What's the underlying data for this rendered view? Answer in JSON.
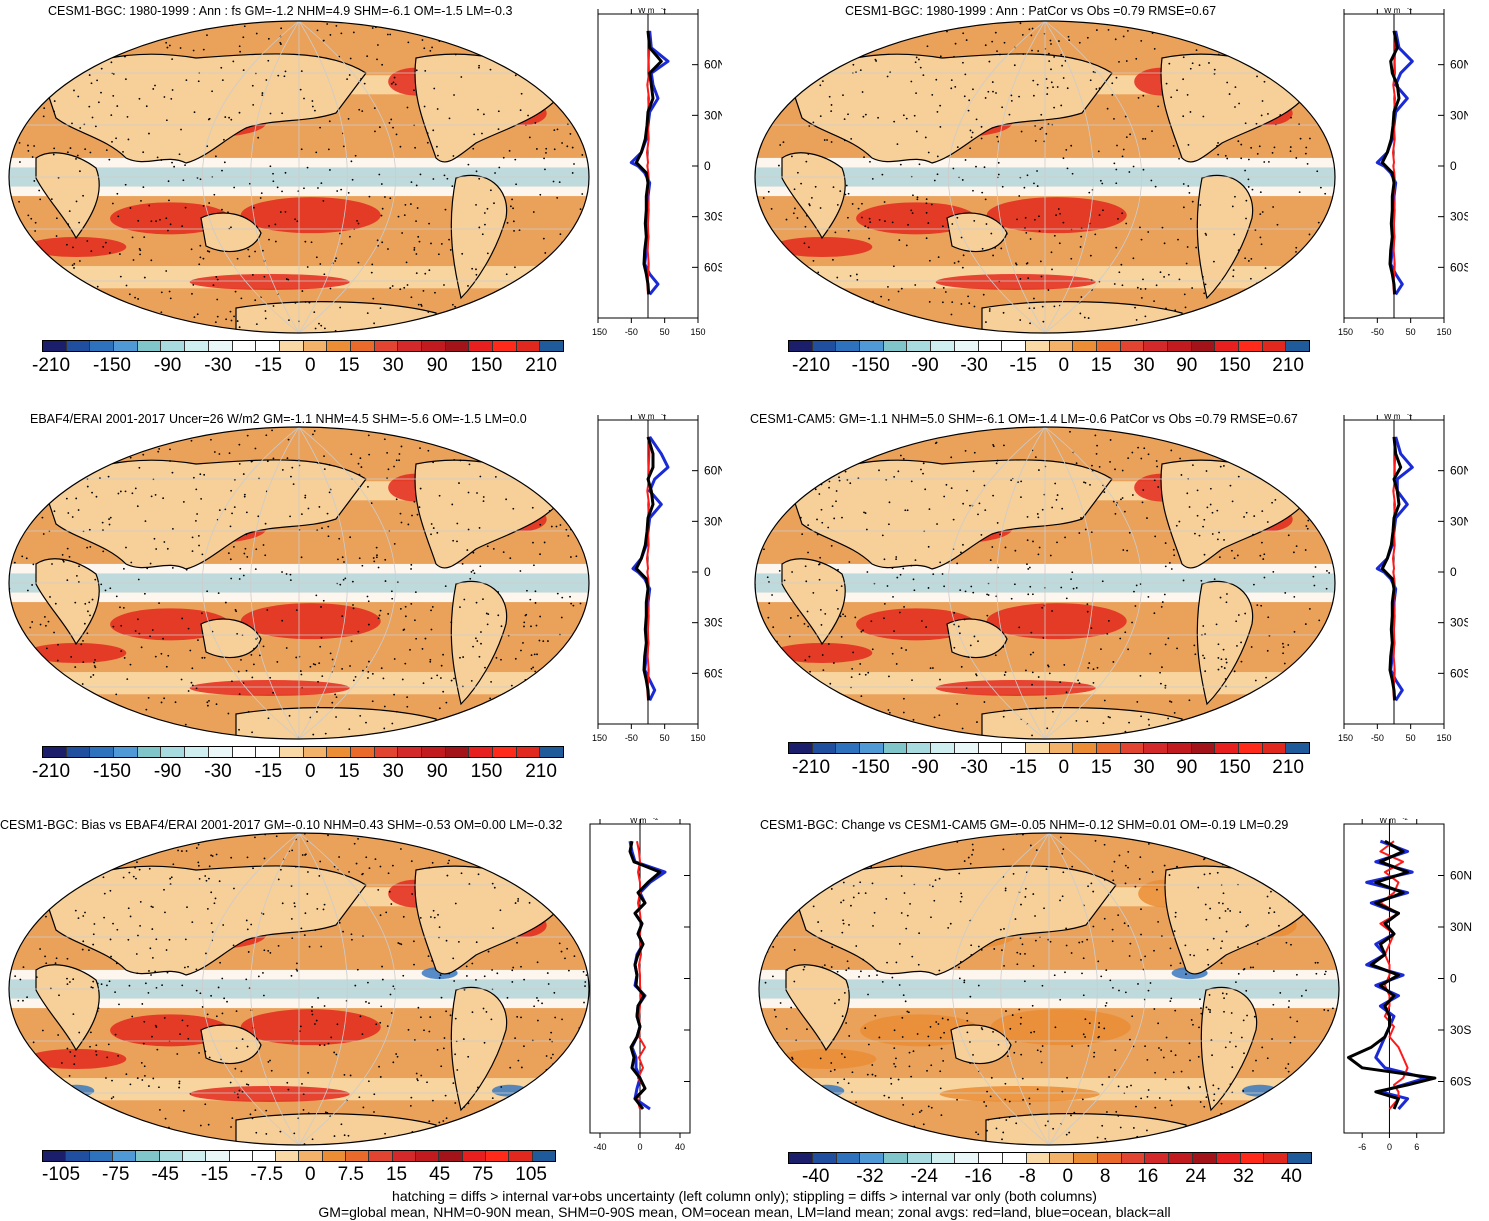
{
  "colors": {
    "land_fill": "#f7cf98",
    "ocean_fill": "#eaa15a",
    "warm": "#e3291d",
    "deep_warm": "#c81e17",
    "cool": "#b9e0ea",
    "blue_line": "#1a2ad6",
    "red_line": "#ff1a1a",
    "black_line": "#000000"
  },
  "colorbar_a": {
    "colors": [
      "#1b1e6b",
      "#1f4f9e",
      "#2e72be",
      "#4f9ad6",
      "#7fc5c9",
      "#a8dbe0",
      "#cfeef0",
      "#e9f7f8",
      "#ffffff",
      "#ffffff",
      "#f9d9a5",
      "#f2b26a",
      "#ea8d35",
      "#e96a2b",
      "#e24432",
      "#d3292a",
      "#c11b1f",
      "#a3131a",
      "#e71f1f",
      "#ff2a1a",
      "#e0281e",
      "#1f5a9a"
    ],
    "labels": [
      "-210",
      "-150",
      "-90",
      "-30",
      "-15",
      "0",
      "15",
      "30",
      "90",
      "150",
      "210"
    ]
  },
  "colorbar_bias": {
    "colors": [
      "#1b1e6b",
      "#1f4f9e",
      "#2e72be",
      "#4f9ad6",
      "#7fc5c9",
      "#a8dbe0",
      "#cfeef0",
      "#e9f7f8",
      "#ffffff",
      "#ffffff",
      "#f9d9a5",
      "#f2b26a",
      "#ea8d35",
      "#e96a2b",
      "#e24432",
      "#d3292a",
      "#c11b1f",
      "#a3131a",
      "#e71f1f",
      "#ff2a1a",
      "#e0281e",
      "#1f5a9a"
    ],
    "labels": [
      "-105",
      "-75",
      "-45",
      "-15",
      "-7.5",
      "0",
      "7.5",
      "15",
      "45",
      "75",
      "105"
    ]
  },
  "colorbar_change": {
    "colors": [
      "#1b1e6b",
      "#1f4f9e",
      "#2e72be",
      "#4f9ad6",
      "#7fc5c9",
      "#a8dbe0",
      "#cfeef0",
      "#e9f7f8",
      "#ffffff",
      "#ffffff",
      "#f9d9a5",
      "#f2b26a",
      "#ea8d35",
      "#e96a2b",
      "#e24432",
      "#d3292a",
      "#c11b1f",
      "#a3131a",
      "#e71f1f",
      "#ff2a1a",
      "#e0281e",
      "#1f5a9a"
    ],
    "labels": [
      "-40",
      "-32",
      "-24",
      "-16",
      "-8",
      "0",
      "8",
      "16",
      "24",
      "32",
      "40"
    ]
  },
  "lat_ticks": [
    "60N",
    "30N",
    "0",
    "30S",
    "60S"
  ],
  "zonal_unit": "W m",
  "zonal_unit_exp": "-2",
  "chart_data": [
    {
      "type": "heatmap",
      "title": "CESM1-BGC: 1980-1999 : Ann : fs GM=-1.2 NHM=4.9 SHM=-6.1 OM=-1.5 LM=-0.3",
      "colorbar": "colorbar_a",
      "zonal_xticks": [
        "-150",
        "-50",
        "50",
        "150"
      ],
      "zonal_xlim": [
        -150,
        150
      ],
      "zonal_lat": [
        80,
        70,
        62,
        55,
        48,
        40,
        32,
        24,
        16,
        8,
        2,
        0,
        -4,
        -10,
        -18,
        -26,
        -34,
        -42,
        -50,
        -58,
        -64,
        -70,
        -76
      ],
      "zonal_series": [
        {
          "key": "ocean",
          "values": [
            5,
            10,
            60,
            10,
            15,
            30,
            5,
            0,
            -5,
            -20,
            -50,
            -30,
            -10,
            5,
            0,
            0,
            -5,
            0,
            -5,
            -10,
            5,
            30,
            5
          ]
        },
        {
          "key": "land",
          "values": [
            3,
            4,
            2,
            3,
            -2,
            3,
            0,
            0,
            2,
            -3,
            0,
            -2,
            1,
            3,
            -2,
            2,
            0,
            1,
            -1,
            2,
            1,
            -2,
            0
          ]
        },
        {
          "key": "all",
          "values": [
            0,
            5,
            40,
            5,
            10,
            15,
            0,
            -3,
            -8,
            -20,
            -35,
            -25,
            -5,
            0,
            -5,
            -5,
            -8,
            -5,
            -10,
            -12,
            -5,
            0,
            2
          ]
        }
      ]
    },
    {
      "type": "heatmap",
      "title": "CESM1-BGC: 1980-1999 : Ann : PatCor vs Obs =0.79 RMSE=0.67",
      "colorbar": "colorbar_a",
      "zonal_xticks": [
        "-150",
        "-50",
        "50",
        "150"
      ],
      "zonal_xlim": [
        -150,
        150
      ],
      "zonal_lat": [
        80,
        70,
        62,
        55,
        48,
        40,
        32,
        24,
        16,
        8,
        2,
        0,
        -4,
        -10,
        -18,
        -26,
        -34,
        -42,
        -50,
        -58,
        -64,
        -70,
        -76
      ],
      "zonal_series": [
        {
          "key": "ocean",
          "values": [
            5,
            15,
            55,
            20,
            5,
            40,
            5,
            0,
            -5,
            -20,
            -50,
            -30,
            -10,
            5,
            0,
            0,
            -5,
            0,
            -5,
            -10,
            5,
            25,
            5
          ]
        },
        {
          "key": "land",
          "values": [
            3,
            4,
            2,
            3,
            -2,
            3,
            0,
            0,
            2,
            -3,
            0,
            -2,
            1,
            3,
            -2,
            2,
            0,
            1,
            -1,
            2,
            1,
            -2,
            0
          ]
        },
        {
          "key": "all",
          "values": [
            0,
            10,
            -10,
            -5,
            10,
            15,
            0,
            -3,
            -8,
            -20,
            -35,
            -25,
            -5,
            0,
            -5,
            -5,
            -8,
            -5,
            -10,
            -12,
            -5,
            0,
            2
          ]
        }
      ]
    },
    {
      "type": "heatmap",
      "title": "EBAF4/ERAI 2001-2017 Uncer=26 W/m2 GM=-1.1 NHM=4.5 SHM=-5.6 OM=-1.5 LM=0.0",
      "colorbar": "colorbar_a",
      "zonal_xticks": [
        "-150",
        "-50",
        "50",
        "150"
      ],
      "zonal_xlim": [
        -150,
        150
      ],
      "zonal_lat": [
        80,
        70,
        62,
        55,
        48,
        40,
        32,
        24,
        16,
        8,
        2,
        0,
        -4,
        -10,
        -18,
        -26,
        -34,
        -42,
        -50,
        -58,
        -64,
        -70,
        -76
      ],
      "zonal_series": [
        {
          "key": "ocean",
          "values": [
            5,
            40,
            60,
            20,
            5,
            40,
            5,
            0,
            -5,
            -20,
            -45,
            -30,
            -10,
            5,
            0,
            0,
            -5,
            0,
            -5,
            -10,
            5,
            20,
            5
          ]
        },
        {
          "key": "land",
          "values": [
            3,
            4,
            2,
            3,
            -2,
            3,
            0,
            0,
            2,
            -3,
            0,
            -2,
            1,
            3,
            -2,
            2,
            0,
            1,
            -1,
            2,
            1,
            -2,
            0
          ]
        },
        {
          "key": "all",
          "values": [
            0,
            15,
            15,
            0,
            10,
            15,
            0,
            -3,
            -8,
            -20,
            -35,
            -25,
            -5,
            0,
            -5,
            -5,
            -8,
            -5,
            -10,
            -12,
            -5,
            0,
            2
          ]
        }
      ]
    },
    {
      "type": "heatmap",
      "title": "CESM1-CAM5: GM=-1.1 NHM=5.0 SHM=-6.1 OM=-1.4 LM=-0.6 PatCor vs Obs =0.79 RMSE=0.67",
      "colorbar": "colorbar_a",
      "zonal_xticks": [
        "-150",
        "-50",
        "50",
        "150"
      ],
      "zonal_xlim": [
        -150,
        150
      ],
      "zonal_lat": [
        80,
        70,
        62,
        55,
        48,
        40,
        32,
        24,
        16,
        8,
        2,
        0,
        -4,
        -10,
        -18,
        -26,
        -34,
        -42,
        -50,
        -58,
        -64,
        -70,
        -76
      ],
      "zonal_series": [
        {
          "key": "ocean",
          "values": [
            5,
            20,
            55,
            10,
            10,
            40,
            5,
            0,
            -5,
            -20,
            -50,
            -30,
            -10,
            5,
            0,
            0,
            -5,
            0,
            -5,
            -10,
            5,
            25,
            5
          ]
        },
        {
          "key": "land",
          "values": [
            3,
            4,
            2,
            3,
            -2,
            3,
            0,
            0,
            2,
            -3,
            0,
            -2,
            1,
            3,
            -2,
            2,
            0,
            1,
            -1,
            2,
            1,
            -2,
            0
          ]
        },
        {
          "key": "all",
          "values": [
            0,
            5,
            20,
            0,
            10,
            15,
            0,
            -3,
            -8,
            -20,
            -35,
            -25,
            -5,
            0,
            -5,
            -5,
            -8,
            -5,
            -10,
            -12,
            -5,
            0,
            2
          ]
        }
      ]
    },
    {
      "type": "heatmap",
      "title": "CESM1-BGC: Bias vs EBAF4/ERAI 2001-2017 GM=-0.10 NHM=0.43 SHM=-0.53 OM=0.00 LM=-0.32",
      "colorbar": "colorbar_bias",
      "zonal_xticks": [
        "-40",
        "0",
        "40"
      ],
      "zonal_xlim": [
        -50,
        50
      ],
      "zonal_lat": [
        80,
        74,
        68,
        62,
        56,
        50,
        44,
        38,
        32,
        26,
        20,
        14,
        8,
        2,
        -4,
        -10,
        -16,
        -22,
        -28,
        -34,
        -40,
        -46,
        -52,
        -58,
        -64,
        -70,
        -76
      ],
      "zonal_series": [
        {
          "key": "ocean",
          "values": [
            -10,
            -8,
            -5,
            25,
            10,
            0,
            5,
            -5,
            2,
            -2,
            3,
            -3,
            -5,
            -3,
            -5,
            5,
            -2,
            -3,
            0,
            -3,
            -8,
            -4,
            -4,
            0,
            -3,
            -5,
            10
          ]
        },
        {
          "key": "land",
          "values": [
            -3,
            -1,
            0,
            -2,
            0,
            0,
            -2,
            0,
            1,
            0,
            0,
            1,
            -1,
            0,
            0,
            1,
            0,
            -1,
            0,
            -1,
            5,
            -1,
            3,
            -2,
            5,
            -3,
            0
          ]
        },
        {
          "key": "all",
          "values": [
            -8,
            -10,
            -6,
            20,
            8,
            -2,
            5,
            -5,
            2,
            -2,
            3,
            -2,
            -5,
            -3,
            -4,
            4,
            -2,
            -3,
            0,
            -3,
            -9,
            -6,
            -8,
            0,
            5,
            -5,
            3
          ]
        }
      ]
    },
    {
      "type": "heatmap",
      "title": "CESM1-BGC: Change vs CESM1-CAM5 GM=-0.05 NHM=-0.12 SHM=0.01 OM=-0.19 LM=0.29",
      "colorbar": "colorbar_change",
      "zonal_xticks": [
        "-6",
        "0",
        "6"
      ],
      "zonal_xlim": [
        -10,
        12
      ],
      "zonal_lat": [
        80,
        74,
        68,
        62,
        56,
        50,
        44,
        38,
        32,
        26,
        20,
        14,
        8,
        2,
        -4,
        -10,
        -16,
        -22,
        -28,
        -34,
        -40,
        -46,
        -52,
        -58,
        -62,
        -66,
        -70,
        -76
      ],
      "zonal_series": [
        {
          "key": "ocean",
          "values": [
            -2,
            4,
            -3,
            5,
            -5,
            4,
            -4,
            2,
            -1,
            1,
            -3,
            -1,
            -5,
            3,
            -3,
            2,
            -2,
            1,
            0,
            -1,
            -2,
            -3,
            -1,
            8,
            3,
            -2,
            4,
            2
          ]
        },
        {
          "key": "land",
          "values": [
            1,
            -2,
            3,
            -1,
            2,
            1,
            -2,
            2,
            -2,
            1,
            0,
            -1,
            0,
            0,
            -1,
            0,
            0,
            -1,
            1,
            0,
            2,
            3,
            4,
            3,
            1,
            2,
            2,
            0
          ]
        },
        {
          "key": "all",
          "values": [
            -1,
            3,
            -2,
            4,
            -3,
            3,
            -3,
            2,
            -1,
            1,
            -2,
            -1,
            -4,
            2,
            -2,
            1,
            -1,
            0,
            0,
            -1,
            -4,
            -9,
            -6,
            10,
            4,
            -3,
            2,
            1
          ]
        }
      ]
    }
  ],
  "footer_line1": "hatching = diffs > internal var+obs uncertainty (left column only); stippling = diffs > internal var only (both columns)",
  "footer_line2": "GM=global mean, NHM=0-90N mean, SHM=0-90S mean, OM=ocean mean, LM=land mean; zonal avgs: red=land, blue=ocean, black=all"
}
